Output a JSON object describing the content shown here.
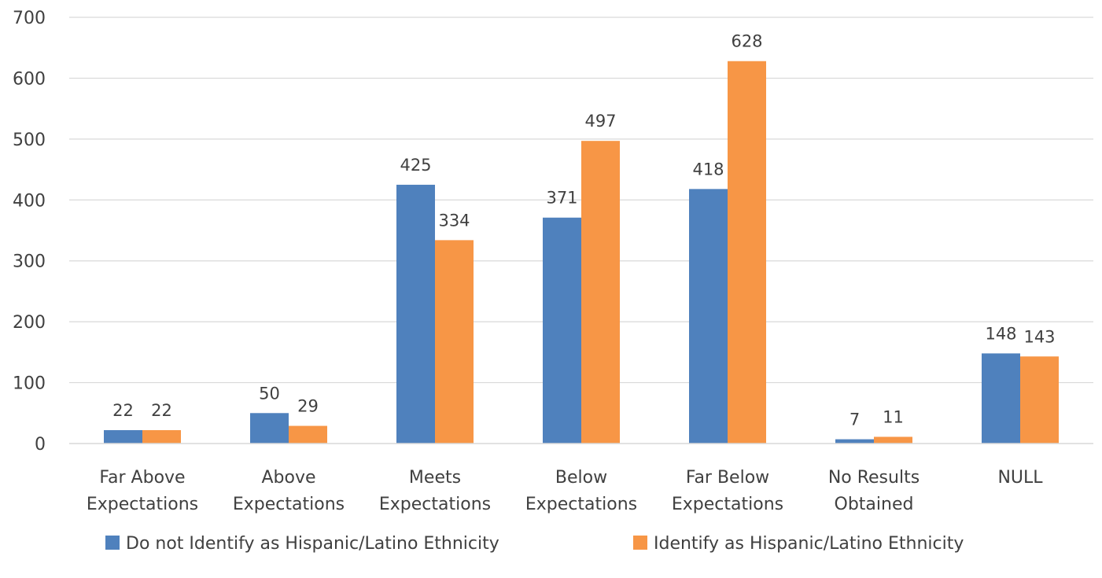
{
  "chart_data": {
    "type": "bar",
    "title": "",
    "xlabel": "",
    "ylabel": "",
    "ylim": [
      0,
      700
    ],
    "yticks": [
      0,
      100,
      200,
      300,
      400,
      500,
      600,
      700
    ],
    "grid": true,
    "legend_position": "bottom",
    "categories": [
      [
        "Far Above",
        "Expectations"
      ],
      [
        "Above",
        "Expectations"
      ],
      [
        "Meets",
        "Expectations"
      ],
      [
        "Below",
        "Expectations"
      ],
      [
        "Far Below",
        "Expectations"
      ],
      [
        "No Results",
        "Obtained"
      ],
      [
        "NULL"
      ]
    ],
    "series": [
      {
        "name": "Do not Identify as Hispanic/Latino Ethnicity",
        "color": "#4f81bd",
        "values": [
          22,
          50,
          425,
          371,
          418,
          7,
          148
        ]
      },
      {
        "name": "Identify as Hispanic/Latino Ethnicity",
        "color": "#f79646",
        "values": [
          22,
          29,
          334,
          497,
          628,
          11,
          143
        ]
      }
    ]
  }
}
